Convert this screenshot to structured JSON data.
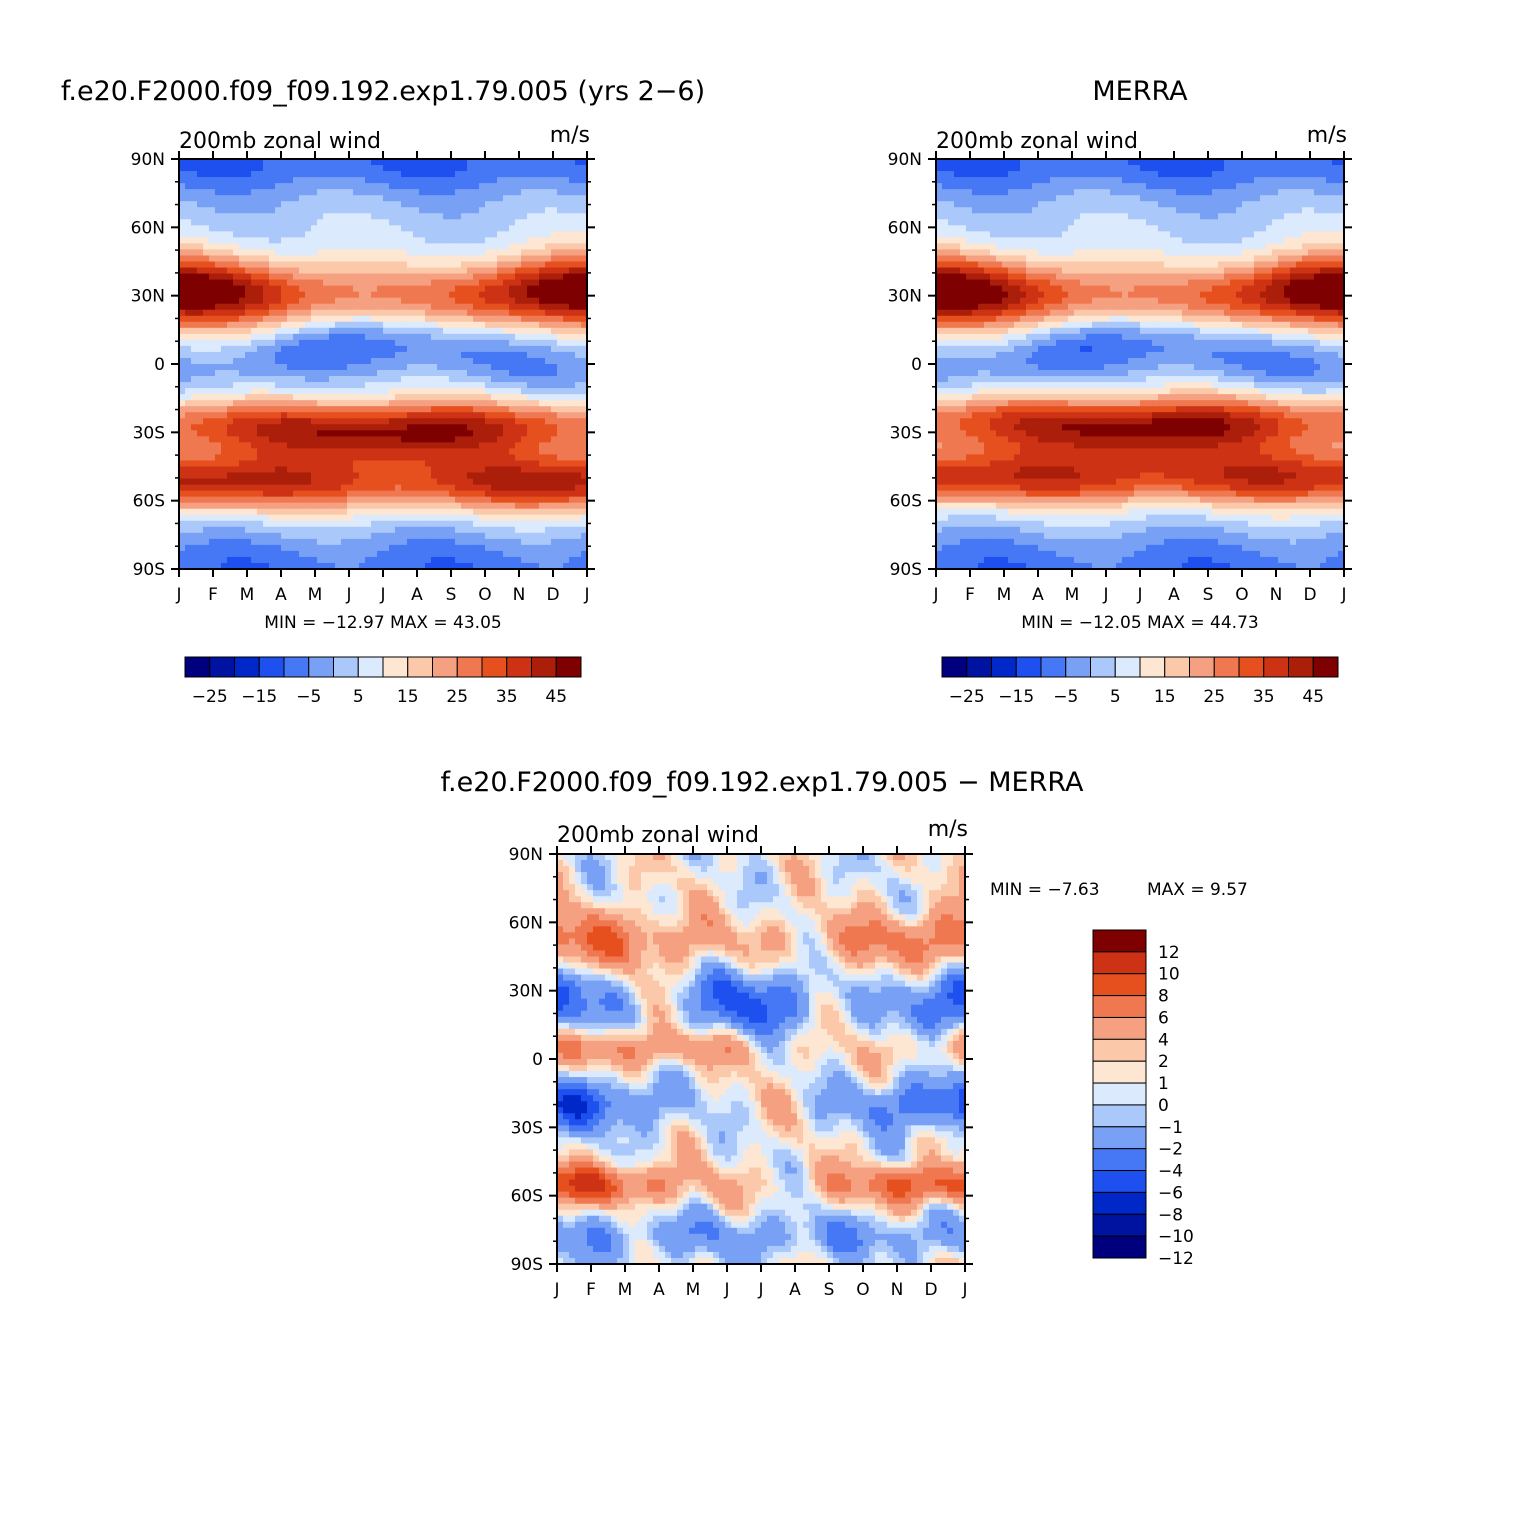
{
  "colors": {
    "abs": [
      "#00007f",
      "#0013a0",
      "#0028c8",
      "#1e50f0",
      "#4678f5",
      "#78a0f5",
      "#aac8fa",
      "#dceafd",
      "#fde6d2",
      "#fcc8aa",
      "#f6a082",
      "#f07850",
      "#e6501e",
      "#cd3214",
      "#aa1e0a",
      "#7f0000"
    ],
    "diff": [
      "#00007f",
      "#0013a0",
      "#0028c8",
      "#1e50f0",
      "#4678f5",
      "#78a0f5",
      "#aac8fa",
      "#dceafd",
      "#fde6d2",
      "#fcc8aa",
      "#f6a082",
      "#f07850",
      "#e6501e",
      "#cd3214",
      "#7f0000"
    ]
  },
  "chart_data": [
    {
      "id": "model",
      "type": "contour",
      "title": "f.e20.F2000.f09_f09.192.exp1.79.005 (yrs 2−6)",
      "left_label": "200mb  zonal  wind",
      "right_label": "m/s",
      "x_ticks": [
        "J",
        "F",
        "M",
        "A",
        "M",
        "J",
        "J",
        "A",
        "S",
        "O",
        "N",
        "D",
        "J"
      ],
      "y_ticks": [
        "90N",
        "60N",
        "30N",
        "0",
        "30S",
        "60S",
        "90S"
      ],
      "stats": "MIN = −12.97 MAX =   43.05",
      "min": -12.97,
      "max": 43.05,
      "levels": [
        -30,
        -25,
        -20,
        -15,
        -10,
        -5,
        0,
        5,
        10,
        15,
        20,
        25,
        30,
        35,
        40,
        45,
        50
      ],
      "colorbar_labels": [
        "−25",
        "−15",
        "−5",
        "5",
        "15",
        "25",
        "35",
        "45"
      ],
      "features": [
        {
          "kind": "nh_jet",
          "lat": 32,
          "amp_jan": 45,
          "amp_jul": 20
        },
        {
          "kind": "sh_jet",
          "lat": -30,
          "amp_jan": 25,
          "amp_jul": 40
        },
        {
          "kind": "sh_polar_jet",
          "lat": -52,
          "amp_jan": 38,
          "amp_jul": 28
        },
        {
          "kind": "tropical_easterly",
          "lat": 5,
          "amp_jan": -3,
          "amp_jul": -12
        }
      ]
    },
    {
      "id": "obs",
      "type": "contour",
      "title": "MERRA",
      "left_label": "200mb  zonal  wind",
      "right_label": "m/s",
      "x_ticks": [
        "J",
        "F",
        "M",
        "A",
        "M",
        "J",
        "J",
        "A",
        "S",
        "O",
        "N",
        "D",
        "J"
      ],
      "y_ticks": [
        "90N",
        "60N",
        "30N",
        "0",
        "30S",
        "60S",
        "90S"
      ],
      "stats": "MIN = −12.05 MAX =   44.73",
      "min": -12.05,
      "max": 44.73,
      "levels": [
        -30,
        -25,
        -20,
        -15,
        -10,
        -5,
        0,
        5,
        10,
        15,
        20,
        25,
        30,
        35,
        40,
        45,
        50
      ],
      "colorbar_labels": [
        "−25",
        "−15",
        "−5",
        "5",
        "15",
        "25",
        "35",
        "45"
      ],
      "features": [
        {
          "kind": "nh_jet",
          "lat": 32,
          "amp_jan": 46,
          "amp_jul": 20
        },
        {
          "kind": "sh_jet",
          "lat": -28,
          "amp_jan": 24,
          "amp_jul": 41
        },
        {
          "kind": "sh_polar_jet",
          "lat": -50,
          "amp_jan": 34,
          "amp_jul": 30
        },
        {
          "kind": "tropical_easterly",
          "lat": 5,
          "amp_jan": -4,
          "amp_jul": -12
        }
      ]
    },
    {
      "id": "diff",
      "type": "contour",
      "title": "f.e20.F2000.f09_f09.192.exp1.79.005 − MERRA",
      "left_label": "200mb  zonal  wind",
      "right_label": "m/s",
      "x_ticks": [
        "J",
        "F",
        "M",
        "A",
        "M",
        "J",
        "J",
        "A",
        "S",
        "O",
        "N",
        "D",
        "J"
      ],
      "y_ticks": [
        "90N",
        "60N",
        "30N",
        "0",
        "30S",
        "60S",
        "90S"
      ],
      "stats_min": "MIN =   −7.63",
      "stats_max": "MAX =    9.57",
      "min": -7.63,
      "max": 9.57,
      "levels": [
        -14,
        -12,
        -10,
        -8,
        -6,
        -4,
        -2,
        -1,
        0,
        1,
        2,
        4,
        6,
        8,
        10,
        12
      ],
      "colorbar_labels": [
        "12",
        "10",
        "8",
        "6",
        "4",
        "2",
        "1",
        "0",
        "−1",
        "−2",
        "−4",
        "−6",
        "−8",
        "−10",
        "−12"
      ]
    }
  ]
}
